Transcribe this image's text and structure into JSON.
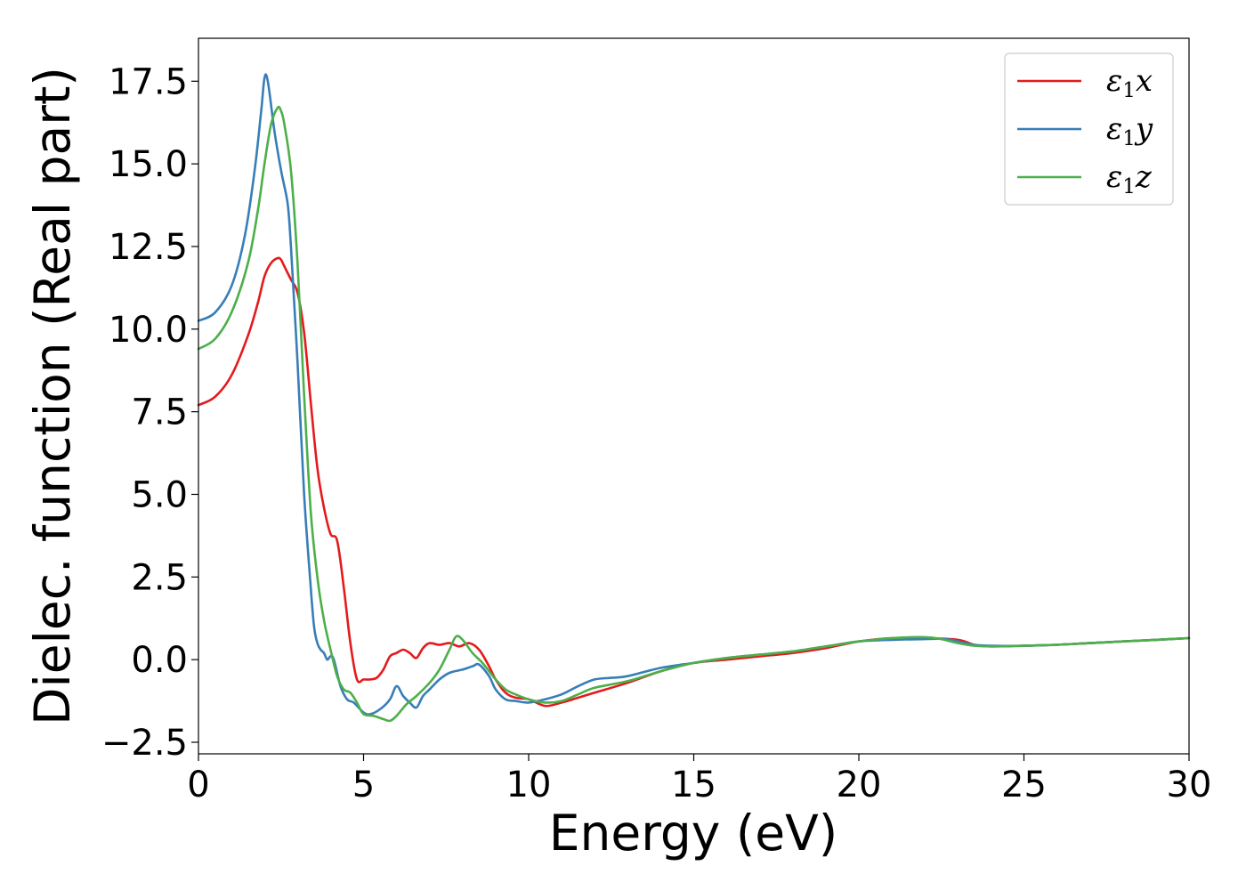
{
  "chart_data": {
    "type": "line",
    "xlabel": "Energy (eV)",
    "ylabel": "Dielec. function (Real part)",
    "xlim": [
      0,
      30
    ],
    "ylim": [
      -2.85,
      18.8
    ],
    "xticks": [
      0,
      5,
      10,
      15,
      20,
      25,
      30
    ],
    "xtick_labels": [
      "0",
      "5",
      "10",
      "15",
      "20",
      "25",
      "30"
    ],
    "yticks": [
      -2.5,
      0.0,
      2.5,
      5.0,
      7.5,
      10.0,
      12.5,
      15.0,
      17.5
    ],
    "ytick_labels": [
      "−2.5",
      "0.0",
      "2.5",
      "5.0",
      "7.5",
      "10.0",
      "12.5",
      "15.0",
      "17.5"
    ],
    "grid": false,
    "legend_position": "top-right",
    "series": [
      {
        "name": "ε₁x",
        "legend": {
          "sym": "ε",
          "sub": "1",
          "axis": "x"
        },
        "color": "#e41a1c",
        "x": [
          0,
          0.5,
          1.0,
          1.5,
          1.8,
          2.0,
          2.2,
          2.4,
          2.5,
          2.6,
          2.8,
          3.0,
          3.2,
          3.4,
          3.6,
          3.8,
          4.0,
          4.2,
          4.4,
          4.6,
          4.8,
          5.0,
          5.2,
          5.4,
          5.6,
          5.8,
          6.0,
          6.2,
          6.4,
          6.6,
          6.8,
          7.0,
          7.3,
          7.6,
          7.9,
          8.2,
          8.5,
          8.8,
          9.0,
          9.3,
          9.6,
          10.0,
          10.5,
          11.0,
          11.5,
          12.0,
          13.0,
          14.0,
          15.0,
          16.0,
          17.0,
          18.0,
          19.0,
          20.0,
          21.0,
          22.0,
          23.0,
          23.5,
          24.0,
          25.0,
          26.0,
          27.0,
          28.0,
          29.0,
          30.0
        ],
        "y": [
          7.7,
          7.95,
          8.6,
          9.8,
          10.8,
          11.6,
          12.0,
          12.15,
          12.1,
          11.9,
          11.5,
          11.1,
          9.9,
          7.8,
          5.8,
          4.6,
          3.8,
          3.6,
          2.2,
          0.5,
          -0.6,
          -0.6,
          -0.6,
          -0.55,
          -0.3,
          0.1,
          0.2,
          0.3,
          0.2,
          0.05,
          0.35,
          0.5,
          0.45,
          0.5,
          0.4,
          0.5,
          0.3,
          -0.2,
          -0.6,
          -1.0,
          -1.15,
          -1.2,
          -1.4,
          -1.3,
          -1.15,
          -1.0,
          -0.7,
          -0.35,
          -0.1,
          0.0,
          0.1,
          0.2,
          0.35,
          0.55,
          0.65,
          0.65,
          0.6,
          0.45,
          0.4,
          0.42,
          0.45,
          0.5,
          0.55,
          0.6,
          0.65
        ]
      },
      {
        "name": "ε₁y",
        "legend": {
          "sym": "ε",
          "sub": "1",
          "axis": "y"
        },
        "color": "#377eb8",
        "x": [
          0,
          0.5,
          1.0,
          1.4,
          1.7,
          1.9,
          2.0,
          2.1,
          2.3,
          2.5,
          2.7,
          2.8,
          3.0,
          3.2,
          3.4,
          3.5,
          3.6,
          3.7,
          3.8,
          3.9,
          4.0,
          4.1,
          4.3,
          4.5,
          4.7,
          5.0,
          5.2,
          5.5,
          5.8,
          6.0,
          6.2,
          6.4,
          6.6,
          6.8,
          7.0,
          7.3,
          7.6,
          8.0,
          8.3,
          8.5,
          8.8,
          9.0,
          9.3,
          9.6,
          10.0,
          10.5,
          11.0,
          11.5,
          12.0,
          12.5,
          13.0,
          14.0,
          15.0,
          16.0,
          17.0,
          18.0,
          19.0,
          20.0,
          21.0,
          22.0,
          22.5,
          22.8,
          23.0,
          23.5,
          24.0,
          25.0,
          26.0,
          27.0,
          28.0,
          29.0,
          30.0
        ],
        "y": [
          10.25,
          10.5,
          11.3,
          12.8,
          14.8,
          16.6,
          17.6,
          17.5,
          16.0,
          14.8,
          13.8,
          12.5,
          9.0,
          5.0,
          2.2,
          1.0,
          0.5,
          0.3,
          0.2,
          0.0,
          0.1,
          0.0,
          -0.8,
          -1.2,
          -1.3,
          -1.6,
          -1.65,
          -1.5,
          -1.2,
          -0.8,
          -1.1,
          -1.3,
          -1.45,
          -1.1,
          -0.9,
          -0.6,
          -0.4,
          -0.3,
          -0.2,
          -0.15,
          -0.5,
          -0.9,
          -1.2,
          -1.25,
          -1.3,
          -1.2,
          -1.05,
          -0.8,
          -0.6,
          -0.55,
          -0.5,
          -0.25,
          -0.1,
          0.05,
          0.15,
          0.25,
          0.4,
          0.55,
          0.6,
          0.62,
          0.63,
          0.6,
          0.55,
          0.45,
          0.42,
          0.42,
          0.45,
          0.5,
          0.55,
          0.6,
          0.65
        ]
      },
      {
        "name": "ε₁z",
        "legend": {
          "sym": "ε",
          "sub": "1",
          "axis": "z"
        },
        "color": "#4daf4a",
        "x": [
          0,
          0.5,
          1.0,
          1.5,
          1.8,
          2.0,
          2.2,
          2.4,
          2.5,
          2.6,
          2.8,
          3.0,
          3.2,
          3.4,
          3.6,
          3.8,
          4.0,
          4.2,
          4.4,
          4.6,
          4.8,
          5.0,
          5.3,
          5.6,
          5.8,
          6.0,
          6.3,
          6.6,
          7.0,
          7.3,
          7.6,
          7.8,
          8.0,
          8.3,
          8.6,
          9.0,
          9.3,
          9.6,
          10.0,
          10.5,
          11.0,
          11.5,
          12.0,
          13.0,
          14.0,
          15.0,
          16.0,
          17.0,
          18.0,
          19.0,
          20.0,
          21.0,
          22.0,
          22.5,
          23.0,
          23.5,
          24.0,
          25.0,
          26.0,
          27.0,
          28.0,
          29.0,
          30.0
        ],
        "y": [
          9.4,
          9.7,
          10.5,
          12.0,
          13.6,
          15.0,
          16.2,
          16.7,
          16.6,
          16.2,
          14.8,
          12.0,
          8.0,
          4.5,
          2.5,
          1.2,
          0.3,
          -0.5,
          -0.9,
          -1.0,
          -1.3,
          -1.65,
          -1.7,
          -1.8,
          -1.85,
          -1.7,
          -1.35,
          -1.1,
          -0.7,
          -0.3,
          0.3,
          0.7,
          0.6,
          0.2,
          -0.1,
          -0.6,
          -0.9,
          -1.05,
          -1.2,
          -1.3,
          -1.25,
          -1.05,
          -0.85,
          -0.65,
          -0.35,
          -0.1,
          0.05,
          0.15,
          0.25,
          0.4,
          0.55,
          0.65,
          0.68,
          0.62,
          0.5,
          0.42,
          0.4,
          0.42,
          0.45,
          0.5,
          0.55,
          0.6,
          0.65
        ]
      }
    ]
  }
}
